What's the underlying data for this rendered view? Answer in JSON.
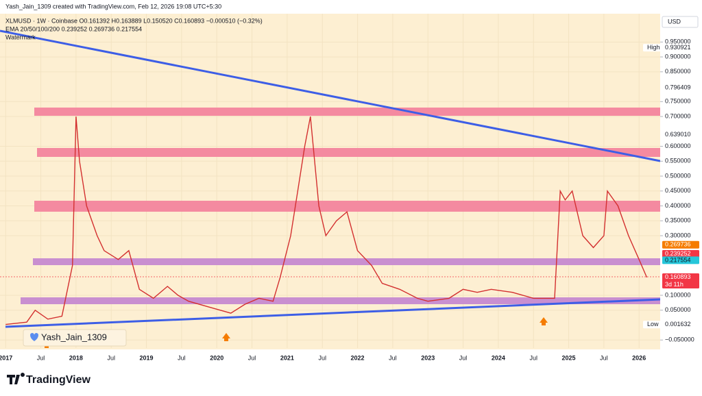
{
  "chart_data": {
    "type": "line",
    "header": "Yash_Jain_1309 created with TradingView.com, Feb 12, 2026 19:08 UTC+5:30",
    "legend_line": "XLMUSD · 1W · Coinbase  O0.161392  H0.163889  L0.150520  C0.160893  −0.000510 (−0.32%)",
    "indicator_line": "EMA 20/50/100/200  0.239252  0.269736  0.217554",
    "watermark": "Watermark",
    "currency": "USD",
    "author_badge": "Yash_Jain_1309",
    "brand": "TradingView",
    "color": "#d32f2f",
    "x": [
      2017.0,
      2017.3,
      2017.42,
      2017.6,
      2017.8,
      2017.95,
      2018.0,
      2018.05,
      2018.15,
      2018.3,
      2018.4,
      2018.6,
      2018.75,
      2018.9,
      2019.1,
      2019.3,
      2019.45,
      2019.6,
      2019.9,
      2020.2,
      2020.4,
      2020.6,
      2020.8,
      2020.9,
      2021.05,
      2021.15,
      2021.25,
      2021.33,
      2021.45,
      2021.55,
      2021.7,
      2021.85,
      2022.0,
      2022.2,
      2022.35,
      2022.6,
      2022.85,
      2023.0,
      2023.3,
      2023.5,
      2023.7,
      2023.9,
      2024.2,
      2024.5,
      2024.8,
      2024.88,
      2024.95,
      2025.05,
      2025.2,
      2025.35,
      2025.5,
      2025.55,
      2025.7,
      2025.85,
      2026.0,
      2026.11
    ],
    "values": [
      0.002,
      0.01,
      0.05,
      0.02,
      0.03,
      0.2,
      0.7,
      0.55,
      0.4,
      0.3,
      0.25,
      0.22,
      0.25,
      0.12,
      0.09,
      0.13,
      0.1,
      0.08,
      0.06,
      0.04,
      0.07,
      0.09,
      0.08,
      0.16,
      0.3,
      0.45,
      0.6,
      0.7,
      0.4,
      0.3,
      0.35,
      0.38,
      0.25,
      0.2,
      0.14,
      0.12,
      0.09,
      0.08,
      0.09,
      0.12,
      0.11,
      0.12,
      0.11,
      0.09,
      0.09,
      0.45,
      0.42,
      0.45,
      0.3,
      0.26,
      0.3,
      0.45,
      0.4,
      0.3,
      0.22,
      0.16
    ],
    "xlim": [
      2016.92,
      2026.3
    ],
    "ylim": [
      -0.077,
      1.045
    ],
    "xticks": [
      {
        "value": 2017.0,
        "label": "2017"
      },
      {
        "value": 2017.5,
        "label": "Jul"
      },
      {
        "value": 2018.0,
        "label": "2018"
      },
      {
        "value": 2018.5,
        "label": "Jul"
      },
      {
        "value": 2019.0,
        "label": "2019"
      },
      {
        "value": 2019.5,
        "label": "Jul"
      },
      {
        "value": 2020.0,
        "label": "2020"
      },
      {
        "value": 2020.5,
        "label": "Jul"
      },
      {
        "value": 2021.0,
        "label": "2021"
      },
      {
        "value": 2021.5,
        "label": "Jul"
      },
      {
        "value": 2022.0,
        "label": "2022"
      },
      {
        "value": 2022.5,
        "label": "Jul"
      },
      {
        "value": 2023.0,
        "label": "2023"
      },
      {
        "value": 2023.5,
        "label": "Jul"
      },
      {
        "value": 2024.0,
        "label": "2024"
      },
      {
        "value": 2024.5,
        "label": "Jul"
      },
      {
        "value": 2025.0,
        "label": "2025"
      },
      {
        "value": 2025.5,
        "label": "Jul"
      },
      {
        "value": 2026.0,
        "label": "2026"
      }
    ],
    "yticks": [
      {
        "value": 0.95,
        "label": "0.950000"
      },
      {
        "value": 0.9,
        "label": "0.900000"
      },
      {
        "value": 0.85,
        "label": "0.850000"
      },
      {
        "value": 0.75,
        "label": "0.750000"
      },
      {
        "value": 0.7,
        "label": "0.700000"
      },
      {
        "value": 0.6,
        "label": "0.600000"
      },
      {
        "value": 0.55,
        "label": "0.550000"
      },
      {
        "value": 0.5,
        "label": "0.500000"
      },
      {
        "value": 0.45,
        "label": "0.450000"
      },
      {
        "value": 0.4,
        "label": "0.400000"
      },
      {
        "value": 0.35,
        "label": "0.350000"
      },
      {
        "value": 0.3,
        "label": "0.300000"
      },
      {
        "value": 0.1,
        "label": "0.100000"
      },
      {
        "value": 0.05,
        "label": "0.050000"
      },
      {
        "value": -0.05,
        "label": "−0.050000"
      }
    ],
    "price_labels": [
      {
        "value": 0.930921,
        "label": "0.930921",
        "tag": "High",
        "color": "#ffffff",
        "text_color": "#131722"
      },
      {
        "value": 0.796409,
        "label": "0.796409",
        "color": "#ffffff",
        "text_color": "#131722"
      },
      {
        "value": 0.63901,
        "label": "0.639010",
        "color": "#ffffff",
        "text_color": "#131722"
      },
      {
        "value": 0.269736,
        "label": "0.269736",
        "color": "#f57c00",
        "text_color": "#ffffff"
      },
      {
        "value": 0.239252,
        "label": "0.239252",
        "color": "#f23645",
        "text_color": "#ffffff"
      },
      {
        "value": 0.217554,
        "label": "0.217554",
        "color": "#26c6da",
        "text_color": "#131722"
      },
      {
        "value": 0.160893,
        "label": "0.160893",
        "sub": "3d 11h",
        "color": "#f23645",
        "text_color": "#ffffff"
      },
      {
        "value": 0.001632,
        "label": "0.001632",
        "tag": "Low",
        "color": "#ffffff",
        "text_color": "#131722"
      }
    ]
  }
}
